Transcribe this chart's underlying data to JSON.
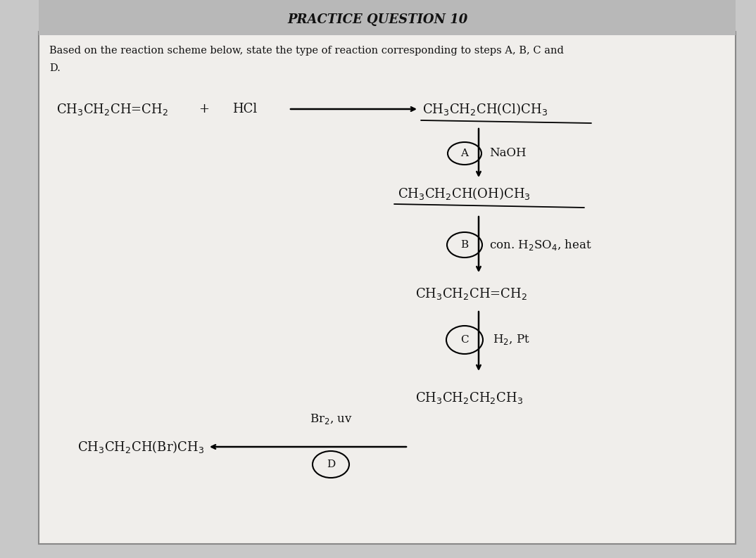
{
  "title": "PRACTICE QUESTION 10",
  "title_fontsize": 13,
  "outer_bg": "#c8c8c8",
  "inner_bg": "#dcdcdc",
  "content_bg": "#f0eeeb",
  "header_bg": "#b8b8b8",
  "question_line1": "Based on the reaction scheme below, state the type of reaction corresponding to steps A, B, C and",
  "question_line2": "D.",
  "font_color": "#111111",
  "reactant": "CH$_3$CH$_2$CH=CH$_2$",
  "plus": "+",
  "hcl": "HCl",
  "product1": "CH$_3$CH$_2$CH(Cl)CH$_3$",
  "product2": "CH$_3$CH$_2$CH(OH)CH$_3$",
  "product3": "CH$_3$CH$_2$CH=CH$_2$",
  "product4": "CH$_3$CH$_2$CH$_2$CH$_3$",
  "product5": "CH$_3$CH$_2$CH(Br)CH$_3$",
  "label_A": "A",
  "label_B": "B",
  "label_C": "C",
  "label_D": "D",
  "reagent_A": "NaOH",
  "reagent_B": "con. H$_2$SO$_4$, heat",
  "reagent_C": "H$_2$, Pt",
  "reagent_D": "Br$_2$, uv"
}
